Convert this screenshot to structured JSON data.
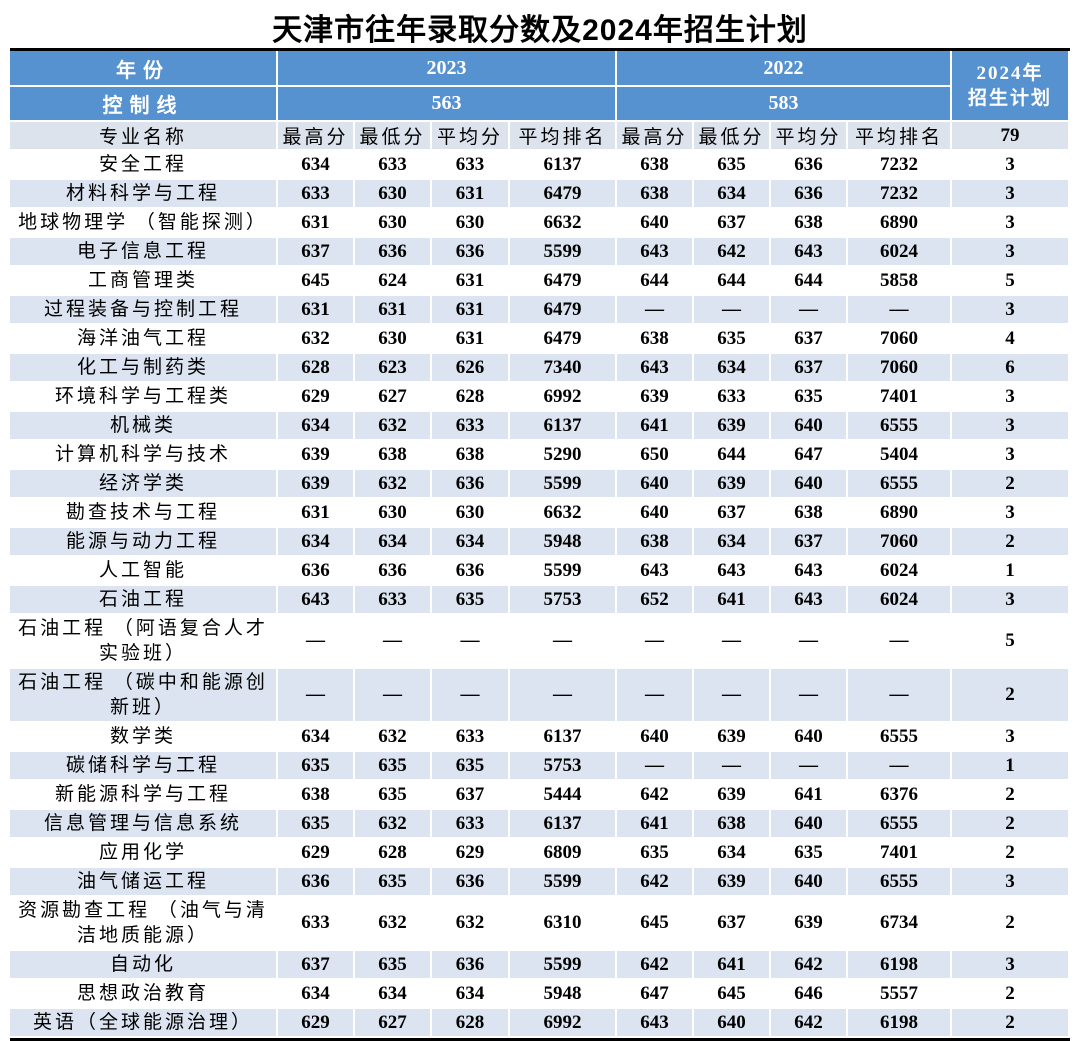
{
  "title": "天津市往年录取分数及2024年招生计划",
  "colors": {
    "header_blue": "#5792d0",
    "subheader_bg": "#dde3ed",
    "row_stripe": "#dbe4f0",
    "table_border": "#000000",
    "header_text": "#ffffff"
  },
  "table": {
    "header": {
      "year_label": "年份",
      "year_2023": "2023",
      "year_2022": "2022",
      "plan_line1": "2024年",
      "plan_line2": "招生计划",
      "control_label": "控制线",
      "control_2023": "563",
      "control_2022": "583",
      "major_label": "专业名称",
      "sub_columns": [
        "最高分",
        "最低分",
        "平均分",
        "平均排名",
        "最高分",
        "最低分",
        "平均分",
        "平均排名"
      ],
      "plan_total": "79"
    },
    "rows": [
      {
        "major": "安全工程",
        "scores_2023": [
          "634",
          "633",
          "633",
          "6137"
        ],
        "scores_2022": [
          "638",
          "635",
          "636",
          "7232"
        ],
        "plan": "3"
      },
      {
        "major": "材料科学与工程",
        "scores_2023": [
          "633",
          "630",
          "631",
          "6479"
        ],
        "scores_2022": [
          "638",
          "634",
          "636",
          "7232"
        ],
        "plan": "3"
      },
      {
        "major": "地球物理学 （智能探测）",
        "scores_2023": [
          "631",
          "630",
          "630",
          "6632"
        ],
        "scores_2022": [
          "640",
          "637",
          "638",
          "6890"
        ],
        "plan": "3"
      },
      {
        "major": "电子信息工程",
        "scores_2023": [
          "637",
          "636",
          "636",
          "5599"
        ],
        "scores_2022": [
          "643",
          "642",
          "643",
          "6024"
        ],
        "plan": "3"
      },
      {
        "major": "工商管理类",
        "scores_2023": [
          "645",
          "624",
          "631",
          "6479"
        ],
        "scores_2022": [
          "644",
          "644",
          "644",
          "5858"
        ],
        "plan": "5"
      },
      {
        "major": "过程装备与控制工程",
        "scores_2023": [
          "631",
          "631",
          "631",
          "6479"
        ],
        "scores_2022": [
          "—",
          "—",
          "—",
          "—"
        ],
        "plan": "3"
      },
      {
        "major": "海洋油气工程",
        "scores_2023": [
          "632",
          "630",
          "631",
          "6479"
        ],
        "scores_2022": [
          "638",
          "635",
          "637",
          "7060"
        ],
        "plan": "4"
      },
      {
        "major": "化工与制药类",
        "scores_2023": [
          "628",
          "623",
          "626",
          "7340"
        ],
        "scores_2022": [
          "643",
          "634",
          "637",
          "7060"
        ],
        "plan": "6"
      },
      {
        "major": "环境科学与工程类",
        "scores_2023": [
          "629",
          "627",
          "628",
          "6992"
        ],
        "scores_2022": [
          "639",
          "633",
          "635",
          "7401"
        ],
        "plan": "3"
      },
      {
        "major": "机械类",
        "scores_2023": [
          "634",
          "632",
          "633",
          "6137"
        ],
        "scores_2022": [
          "641",
          "639",
          "640",
          "6555"
        ],
        "plan": "3"
      },
      {
        "major": "计算机科学与技术",
        "scores_2023": [
          "639",
          "638",
          "638",
          "5290"
        ],
        "scores_2022": [
          "650",
          "644",
          "647",
          "5404"
        ],
        "plan": "3"
      },
      {
        "major": "经济学类",
        "scores_2023": [
          "639",
          "632",
          "636",
          "5599"
        ],
        "scores_2022": [
          "640",
          "639",
          "640",
          "6555"
        ],
        "plan": "2"
      },
      {
        "major": "勘查技术与工程",
        "scores_2023": [
          "631",
          "630",
          "630",
          "6632"
        ],
        "scores_2022": [
          "640",
          "637",
          "638",
          "6890"
        ],
        "plan": "3"
      },
      {
        "major": "能源与动力工程",
        "scores_2023": [
          "634",
          "634",
          "634",
          "5948"
        ],
        "scores_2022": [
          "638",
          "634",
          "637",
          "7060"
        ],
        "plan": "2"
      },
      {
        "major": "人工智能",
        "scores_2023": [
          "636",
          "636",
          "636",
          "5599"
        ],
        "scores_2022": [
          "643",
          "643",
          "643",
          "6024"
        ],
        "plan": "1"
      },
      {
        "major": "石油工程",
        "scores_2023": [
          "643",
          "633",
          "635",
          "5753"
        ],
        "scores_2022": [
          "652",
          "641",
          "643",
          "6024"
        ],
        "plan": "3"
      },
      {
        "major": "石油工程 （阿语复合人才实验班）",
        "scores_2023": [
          "—",
          "—",
          "—",
          "—"
        ],
        "scores_2022": [
          "—",
          "—",
          "—",
          "—"
        ],
        "plan": "5"
      },
      {
        "major": "石油工程 （碳中和能源创新班）",
        "scores_2023": [
          "—",
          "—",
          "—",
          "—"
        ],
        "scores_2022": [
          "—",
          "—",
          "—",
          "—"
        ],
        "plan": "2"
      },
      {
        "major": "数学类",
        "scores_2023": [
          "634",
          "632",
          "633",
          "6137"
        ],
        "scores_2022": [
          "640",
          "639",
          "640",
          "6555"
        ],
        "plan": "3"
      },
      {
        "major": "碳储科学与工程",
        "scores_2023": [
          "635",
          "635",
          "635",
          "5753"
        ],
        "scores_2022": [
          "—",
          "—",
          "—",
          "—"
        ],
        "plan": "1"
      },
      {
        "major": "新能源科学与工程",
        "scores_2023": [
          "638",
          "635",
          "637",
          "5444"
        ],
        "scores_2022": [
          "642",
          "639",
          "641",
          "6376"
        ],
        "plan": "2"
      },
      {
        "major": "信息管理与信息系统",
        "scores_2023": [
          "635",
          "632",
          "633",
          "6137"
        ],
        "scores_2022": [
          "641",
          "638",
          "640",
          "6555"
        ],
        "plan": "2"
      },
      {
        "major": "应用化学",
        "scores_2023": [
          "629",
          "628",
          "629",
          "6809"
        ],
        "scores_2022": [
          "635",
          "634",
          "635",
          "7401"
        ],
        "plan": "2"
      },
      {
        "major": "油气储运工程",
        "scores_2023": [
          "636",
          "635",
          "636",
          "5599"
        ],
        "scores_2022": [
          "642",
          "639",
          "640",
          "6555"
        ],
        "plan": "3"
      },
      {
        "major": "资源勘查工程 （油气与清洁地质能源）",
        "scores_2023": [
          "633",
          "632",
          "632",
          "6310"
        ],
        "scores_2022": [
          "645",
          "637",
          "639",
          "6734"
        ],
        "plan": "2"
      },
      {
        "major": "自动化",
        "scores_2023": [
          "637",
          "635",
          "636",
          "5599"
        ],
        "scores_2022": [
          "642",
          "641",
          "642",
          "6198"
        ],
        "plan": "3"
      },
      {
        "major": "思想政治教育",
        "scores_2023": [
          "634",
          "634",
          "634",
          "5948"
        ],
        "scores_2022": [
          "647",
          "645",
          "646",
          "5557"
        ],
        "plan": "2"
      },
      {
        "major": "英语（全球能源治理）",
        "scores_2023": [
          "629",
          "627",
          "628",
          "6992"
        ],
        "scores_2022": [
          "643",
          "640",
          "642",
          "6198"
        ],
        "plan": "2"
      }
    ]
  }
}
